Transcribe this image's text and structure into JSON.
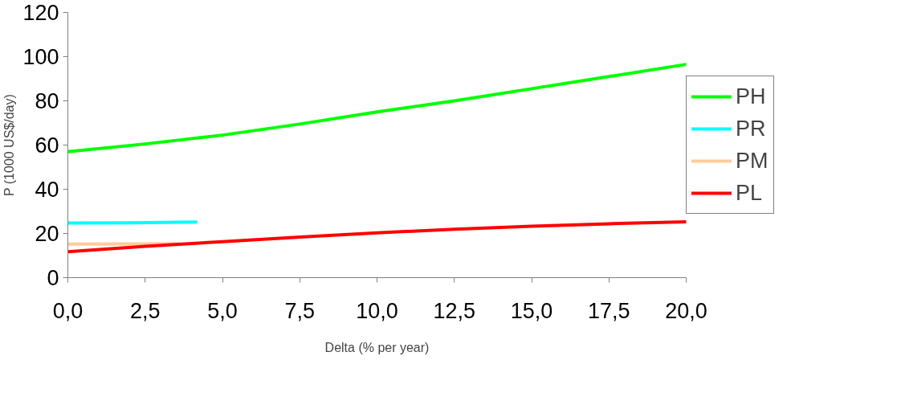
{
  "chart_data": {
    "type": "line",
    "xlabel": "Delta (% per year)",
    "ylabel": "P (1000 US$/day)",
    "xlim": [
      0,
      20
    ],
    "ylim": [
      0,
      120
    ],
    "xticks": [
      {
        "value": 0,
        "label": "0,0"
      },
      {
        "value": 2.5,
        "label": "2,5"
      },
      {
        "value": 5,
        "label": "5,0"
      },
      {
        "value": 7.5,
        "label": "7,5"
      },
      {
        "value": 10,
        "label": "10,0"
      },
      {
        "value": 12.5,
        "label": "12,5"
      },
      {
        "value": 15,
        "label": "15,0"
      },
      {
        "value": 17.5,
        "label": "17,5"
      },
      {
        "value": 20,
        "label": "20,0"
      }
    ],
    "yticks": [
      0,
      20,
      40,
      60,
      80,
      100,
      120
    ],
    "grid": false,
    "legend": "right",
    "line_style": "solid",
    "marker": "none",
    "series": [
      {
        "name": "PH",
        "color": "#00ff00",
        "x": [
          0,
          2.5,
          5,
          7.5,
          10,
          12.5,
          15,
          17.5,
          20
        ],
        "values": [
          57,
          60.5,
          64.5,
          69.5,
          75,
          80,
          85.5,
          91,
          96.5
        ]
      },
      {
        "name": "PR",
        "color": "#00ffff",
        "x": [
          0,
          2,
          4.15
        ],
        "values": [
          24.7,
          24.8,
          25.2
        ]
      },
      {
        "name": "PM",
        "color": "#ffcc99",
        "x": [
          0,
          3.6
        ],
        "values": [
          15.2,
          15.4
        ]
      },
      {
        "name": "PL",
        "color": "#ff0000",
        "x": [
          0,
          2.5,
          5,
          7.5,
          10,
          12.5,
          15,
          17.5,
          20
        ],
        "values": [
          11.7,
          14.2,
          16.3,
          18.4,
          20.3,
          21.9,
          23.3,
          24.4,
          25.3
        ]
      }
    ]
  }
}
